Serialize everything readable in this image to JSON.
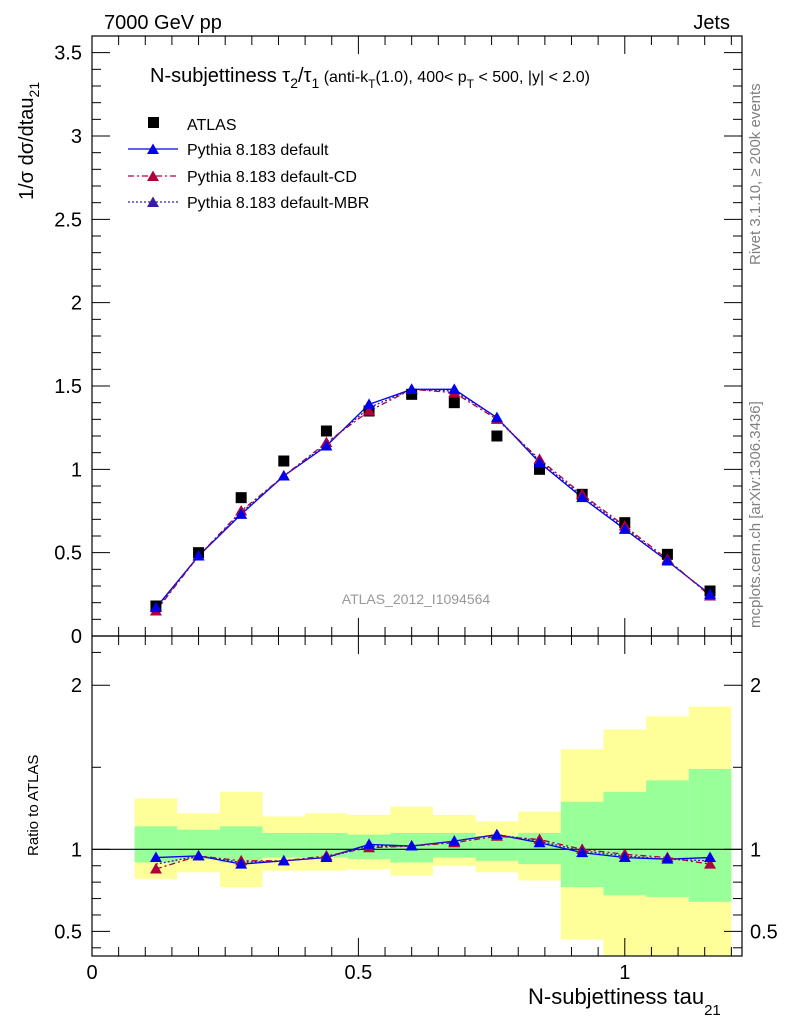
{
  "header": {
    "left": "7000 GeV pp",
    "right": "Jets"
  },
  "title": {
    "main": "N-subjettiness τ",
    "sub2": "2",
    "slash": "/τ",
    "sub1": "1",
    "cuts_pre": " (anti-k",
    "cuts_T1": "T",
    "cuts_mid": "(1.0), 400< p",
    "cuts_T2": "T",
    "cuts_post": " < 500, |y| < 2.0)"
  },
  "ylabel": {
    "main": "1/σ dσ/dtau",
    "sub": "21"
  },
  "xlabel": {
    "main": "N-subjettiness tau",
    "sub": "21"
  },
  "ratio_ylabel": "Ratio to ATLAS",
  "watermark": "ATLAS_2012_I1094564",
  "side_text_top": "Rivet 3.1.10, ≥ 200k events",
  "side_text_bottom": "mcplots.cern.ch [arXiv:1306.3436]",
  "legend": [
    {
      "label": "ATLAS"
    },
    {
      "label": "Pythia 8.183 default"
    },
    {
      "label": "Pythia 8.183 default-CD"
    },
    {
      "label": "Pythia 8.183 default-MBR"
    }
  ],
  "colors": {
    "data": "#000000",
    "default": "#0000ee",
    "cd": "#b0003c",
    "mbr": "#3a1aa8",
    "band_inner": "#99ff99",
    "band_outer": "#ffff99"
  },
  "chart_data": [
    {
      "type": "scatter",
      "panel": "main",
      "xlim": [
        0,
        1.22
      ],
      "ylim": [
        0,
        3.6
      ],
      "yticks": [
        "0",
        "0.5",
        "1",
        "1.5",
        "2",
        "2.5",
        "3",
        "3.5"
      ],
      "x": [
        0.12,
        0.2,
        0.28,
        0.36,
        0.44,
        0.52,
        0.6,
        0.68,
        0.76,
        0.84,
        0.92,
        1.0,
        1.08,
        1.16
      ],
      "series": [
        {
          "name": "ATLAS",
          "values": [
            0.18,
            0.5,
            0.83,
            1.05,
            1.23,
            1.35,
            1.45,
            1.4,
            1.2,
            1.0,
            0.85,
            0.68,
            0.49,
            0.27
          ]
        },
        {
          "name": "Pythia 8.183 default",
          "values": [
            0.17,
            0.48,
            0.73,
            0.96,
            1.14,
            1.39,
            1.48,
            1.48,
            1.31,
            1.04,
            0.83,
            0.64,
            0.45,
            0.25
          ]
        },
        {
          "name": "Pythia 8.183 default-CD",
          "values": [
            0.15,
            0.48,
            0.75,
            0.96,
            1.16,
            1.35,
            1.48,
            1.46,
            1.3,
            1.06,
            0.85,
            0.66,
            0.46,
            0.24
          ]
        },
        {
          "name": "Pythia 8.183 default-MBR",
          "values": [
            0.16,
            0.48,
            0.74,
            0.96,
            1.15,
            1.37,
            1.48,
            1.47,
            1.31,
            1.05,
            0.84,
            0.65,
            0.45,
            0.25
          ]
        }
      ]
    },
    {
      "type": "line",
      "panel": "ratio",
      "xlim": [
        0,
        1.22
      ],
      "ylim": [
        0.35,
        2.3
      ],
      "yticks": [
        "0.5",
        "1",
        "2"
      ],
      "xticks": [
        "0",
        "0.5",
        "1"
      ],
      "bin_edges": [
        0.08,
        0.16,
        0.24,
        0.32,
        0.4,
        0.48,
        0.56,
        0.64,
        0.72,
        0.8,
        0.88,
        0.96,
        1.04,
        1.12,
        1.2
      ],
      "band_inner": [
        [
          0.92,
          1.14
        ],
        [
          0.94,
          1.12
        ],
        [
          0.92,
          1.14
        ],
        [
          0.95,
          1.1
        ],
        [
          0.95,
          1.1
        ],
        [
          0.94,
          1.09
        ],
        [
          0.92,
          1.1
        ],
        [
          0.95,
          1.1
        ],
        [
          0.93,
          1.08
        ],
        [
          0.91,
          1.1
        ],
        [
          0.77,
          1.29
        ],
        [
          0.72,
          1.35
        ],
        [
          0.71,
          1.42
        ],
        [
          0.68,
          1.49
        ]
      ],
      "band_outer": [
        [
          0.82,
          1.31
        ],
        [
          0.86,
          1.22
        ],
        [
          0.77,
          1.35
        ],
        [
          0.87,
          1.2
        ],
        [
          0.87,
          1.22
        ],
        [
          0.88,
          1.21
        ],
        [
          0.84,
          1.26
        ],
        [
          0.9,
          1.21
        ],
        [
          0.86,
          1.17
        ],
        [
          0.81,
          1.23
        ],
        [
          0.45,
          1.61
        ],
        [
          0.33,
          1.73
        ],
        [
          0.33,
          1.81
        ],
        [
          0.33,
          1.87
        ]
      ],
      "series": [
        {
          "name": "Pythia 8.183 default",
          "values": [
            0.95,
            0.96,
            0.91,
            0.93,
            0.95,
            1.03,
            1.02,
            1.05,
            1.09,
            1.04,
            0.98,
            0.95,
            0.94,
            0.95
          ]
        },
        {
          "name": "Pythia 8.183 default-CD",
          "values": [
            0.88,
            0.96,
            0.93,
            0.93,
            0.96,
            1.01,
            1.02,
            1.04,
            1.08,
            1.06,
            1.0,
            0.97,
            0.95,
            0.91
          ]
        },
        {
          "name": "Pythia 8.183 default-MBR",
          "values": [
            0.91,
            0.96,
            0.92,
            0.93,
            0.95,
            1.02,
            1.02,
            1.05,
            1.09,
            1.05,
            0.99,
            0.96,
            0.94,
            0.93
          ]
        }
      ]
    }
  ]
}
